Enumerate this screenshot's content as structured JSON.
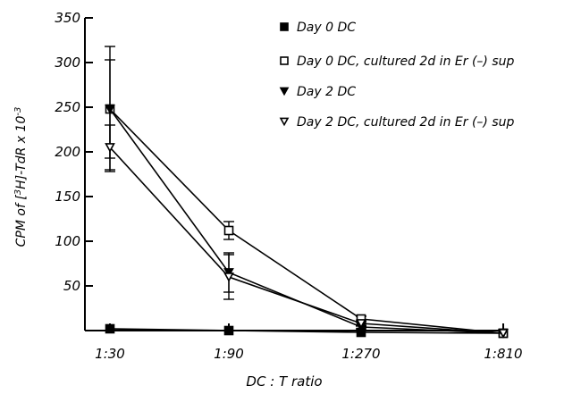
{
  "chart_data": {
    "type": "line",
    "xlabel": "DC : T ratio",
    "ylabel_parts": {
      "prefix": "CPM of [",
      "sup1": "3",
      "mid": "H]-TdR x 10",
      "sup2": "-3"
    },
    "categories": [
      "1:30",
      "1:90",
      "1:270",
      "1:810"
    ],
    "ylim": [
      0,
      350
    ],
    "yticks": [
      50,
      100,
      150,
      200,
      250,
      300,
      350
    ],
    "grid": false,
    "legend_position": "top-right",
    "series": [
      {
        "name": "Day 0 DC",
        "marker": "filled-square",
        "values": [
          2,
          0,
          -2,
          -3
        ],
        "errors": [
          0,
          0,
          0,
          0
        ]
      },
      {
        "name": "Day 0 DC, cultured 2d in Er (–) sup",
        "marker": "open-square",
        "values": [
          248,
          112,
          13,
          -3
        ],
        "errors": [
          70,
          10,
          3,
          0
        ]
      },
      {
        "name": "Day 2 DC",
        "marker": "filled-triangle-down",
        "values": [
          248,
          65,
          4,
          -3
        ],
        "errors": [
          55,
          22,
          2,
          0
        ]
      },
      {
        "name": "Day 2 DC, cultured 2d in Er (–) sup",
        "marker": "open-triangle-down",
        "values": [
          205,
          60,
          8,
          -3
        ],
        "errors": [
          25,
          25,
          3,
          0
        ]
      }
    ]
  }
}
